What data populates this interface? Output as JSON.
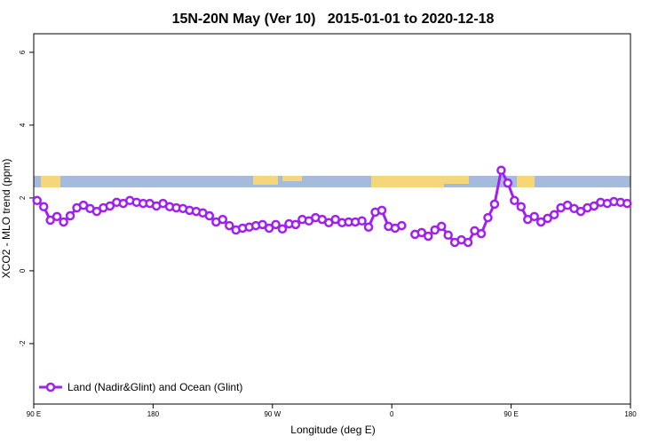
{
  "chart_data": {
    "type": "line",
    "title": "15N-20N May (Ver 10)   2015-01-01 to 2020-12-18",
    "x_label": "Longitude (deg E)",
    "y_label": "XCO2 - MLO trend (ppm)",
    "xlim": [
      90,
      540
    ],
    "ylim": [
      -3.66,
      6.51
    ],
    "xticks": [
      {
        "value": 90,
        "label": "90 E"
      },
      180,
      {
        "value": 270,
        "label": "90 W"
      },
      {
        "value": 360,
        "label": "0"
      },
      {
        "value": 450,
        "label": "90 E"
      },
      {
        "value": 540,
        "label": "180"
      }
    ],
    "yticks": [
      -2,
      0,
      2,
      4,
      6
    ],
    "legend_position": "bottom-left",
    "x": [
      92.5,
      97.5,
      102.5,
      107.5,
      112.5,
      117.5,
      122.5,
      127.5,
      132.5,
      137.5,
      142.5,
      147.5,
      152.5,
      157.5,
      162.5,
      167.5,
      172.5,
      177.5,
      182.5,
      187.5,
      192.5,
      197.5,
      202.5,
      207.5,
      212.5,
      217.5,
      222.5,
      227.5,
      232.5,
      237.5,
      242.5,
      247.5,
      252.5,
      257.5,
      262.5,
      267.5,
      272.5,
      277.5,
      282.5,
      287.5,
      292.5,
      297.5,
      302.5,
      307.5,
      312.5,
      317.5,
      322.5,
      327.5,
      332.5,
      337.5,
      342.5,
      347.5,
      352.5,
      357.5,
      362.5,
      367.5,
      372.5,
      377.5,
      382.5,
      387.5,
      392.5,
      397.5,
      402.5,
      407.5,
      412.5,
      417.5,
      422.5,
      427.5,
      432.5,
      437.5,
      442.5,
      447.5,
      452.5,
      457.5,
      462.5,
      467.5,
      472.5,
      477.5,
      482.5,
      487.5,
      492.5,
      497.5,
      502.5,
      507.5,
      512.5,
      517.5,
      522.5,
      527.5,
      532.5,
      537.5
    ],
    "series": [
      {
        "name": "Land (Nadir&Glint) and Ocean (Glint)",
        "color": "#a020f0",
        "values": [
          1.93,
          1.76,
          1.39,
          1.49,
          1.34,
          1.51,
          1.73,
          1.8,
          1.71,
          1.63,
          1.73,
          1.78,
          1.88,
          1.85,
          1.93,
          1.88,
          1.85,
          1.85,
          1.78,
          1.85,
          1.76,
          1.73,
          1.71,
          1.66,
          1.63,
          1.59,
          1.51,
          1.34,
          1.41,
          1.24,
          1.12,
          1.17,
          1.2,
          1.24,
          1.27,
          1.17,
          1.27,
          1.15,
          1.29,
          1.27,
          1.41,
          1.37,
          1.46,
          1.41,
          1.32,
          1.41,
          1.32,
          1.34,
          1.34,
          1.37,
          1.2,
          1.61,
          1.66,
          1.22,
          1.17,
          1.24,
          null,
          1.0,
          1.05,
          0.95,
          1.12,
          1.22,
          0.98,
          0.78,
          0.85,
          0.78,
          1.1,
          1.02,
          1.46,
          1.83,
          2.76,
          2.41,
          1.93,
          1.76,
          1.41,
          1.49,
          1.34,
          1.44,
          1.54,
          1.73,
          1.8,
          1.71,
          1.63,
          1.73,
          1.78,
          1.88,
          1.85,
          1.9,
          1.88,
          1.85
        ]
      }
    ]
  }
}
